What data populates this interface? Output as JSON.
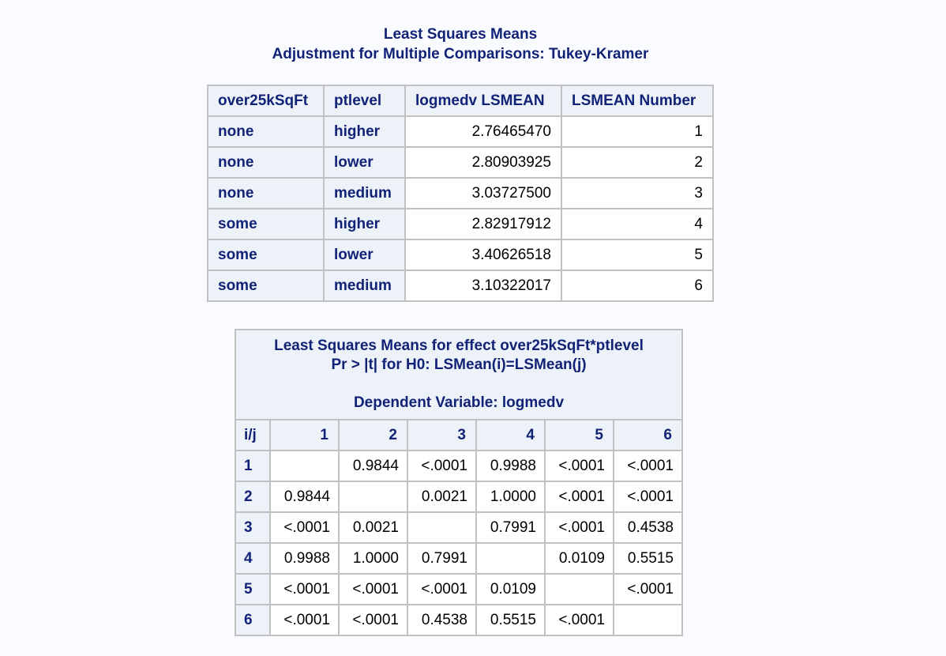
{
  "title": {
    "line1": "Least Squares Means",
    "line2": "Adjustment for Multiple Comparisons: Tukey-Kramer"
  },
  "lsmeans_table": {
    "headers": [
      "over25kSqFt",
      "ptlevel",
      "logmedv LSMEAN",
      "LSMEAN Number"
    ],
    "rows": [
      [
        "none",
        "higher",
        "2.76465470",
        "1"
      ],
      [
        "none",
        "lower",
        "2.80903925",
        "2"
      ],
      [
        "none",
        "medium",
        "3.03727500",
        "3"
      ],
      [
        "some",
        "higher",
        "2.82917912",
        "4"
      ],
      [
        "some",
        "lower",
        "3.40626518",
        "5"
      ],
      [
        "some",
        "medium",
        "3.10322017",
        "6"
      ]
    ]
  },
  "pvalue_table": {
    "caption_line1": "Least Squares Means for effect over25kSqFt*ptlevel",
    "caption_line2": "Pr > |t| for H0: LSMean(i)=LSMean(j)",
    "caption_line3": "Dependent Variable: logmedv",
    "corner_label": "i/j",
    "col_headers": [
      "1",
      "2",
      "3",
      "4",
      "5",
      "6"
    ],
    "rows": [
      {
        "label": "1",
        "cells": [
          "",
          "0.9844",
          "<.0001",
          "0.9988",
          "<.0001",
          "<.0001"
        ]
      },
      {
        "label": "2",
        "cells": [
          "0.9844",
          "",
          "0.0021",
          "1.0000",
          "<.0001",
          "<.0001"
        ]
      },
      {
        "label": "3",
        "cells": [
          "<.0001",
          "0.0021",
          "",
          "0.7991",
          "<.0001",
          "0.4538"
        ]
      },
      {
        "label": "4",
        "cells": [
          "0.9988",
          "1.0000",
          "0.7991",
          "",
          "0.0109",
          "0.5515"
        ]
      },
      {
        "label": "5",
        "cells": [
          "<.0001",
          "<.0001",
          "<.0001",
          "0.0109",
          "",
          "<.0001"
        ]
      },
      {
        "label": "6",
        "cells": [
          "<.0001",
          "<.0001",
          "0.4538",
          "0.5515",
          "<.0001",
          ""
        ]
      }
    ]
  }
}
